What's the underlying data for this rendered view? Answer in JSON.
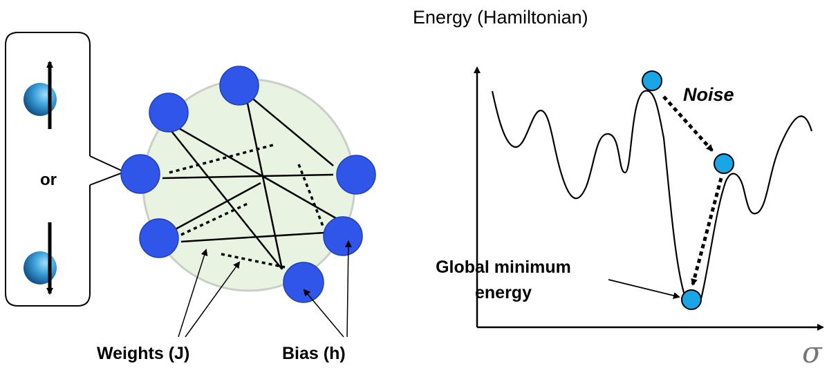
{
  "spin_box": {
    "or_label": "or"
  },
  "network": {
    "weights_label": "Weights (J)",
    "bias_label": "Bias (h)",
    "node_color": "#2f56e8",
    "background_color": "#e8f3e2"
  },
  "energy_plot": {
    "y_axis_title": "Energy (Hamiltonian)",
    "x_axis_symbol": "σ",
    "noise_label": "Noise",
    "global_min_label_line1": "Global minimum",
    "global_min_label_line2": "energy",
    "ball_color": "#1aa6e6"
  }
}
